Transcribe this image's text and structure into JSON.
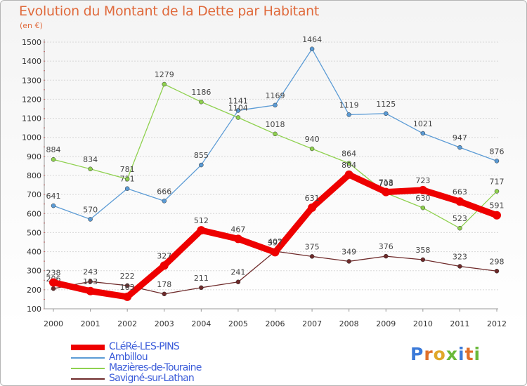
{
  "page": {
    "title": "Evolution du Montant de la Dette par Habitant",
    "unit": "(en €)",
    "brand": "Proxiti"
  },
  "chart_data": {
    "type": "line",
    "title": "Evolution du Montant de la Dette par Habitant",
    "ylabel": "(en €)",
    "ylim": [
      100,
      1500
    ],
    "yticks": [
      100,
      200,
      300,
      400,
      500,
      600,
      700,
      800,
      900,
      1000,
      1100,
      1200,
      1300,
      1400,
      1500
    ],
    "x": [
      "2000",
      "2001",
      "2002",
      "2003",
      "2004",
      "2005",
      "2006",
      "2007",
      "2008",
      "2009",
      "2010",
      "2011",
      "2012"
    ],
    "grid": "horizontal",
    "legend_position": "bottom-left",
    "series": [
      {
        "name": "Ambillou",
        "color": "#5b9bd5",
        "values": [
          641,
          570,
          731,
          666,
          855,
          1141,
          1169,
          1464,
          1119,
          1125,
          1021,
          947,
          876
        ]
      },
      {
        "name": "Mazières-de-Touraine",
        "color": "#8fd14f",
        "values": [
          884,
          834,
          781,
          1279,
          1186,
          1104,
          1018,
          940,
          864,
          708,
          630,
          523,
          717
        ]
      },
      {
        "name": "Savigné-sur-Lathan",
        "color": "#6e2a2a",
        "values": [
          206,
          243,
          222,
          178,
          211,
          241,
          402,
          375,
          349,
          376,
          358,
          323,
          298
        ]
      },
      {
        "name": "CLéRé-LES-PINS",
        "color": "#ee0000",
        "values": [
          238,
          193,
          163,
          327,
          512,
          467,
          397,
          631,
          804,
          713,
          723,
          663,
          591
        ]
      }
    ]
  }
}
